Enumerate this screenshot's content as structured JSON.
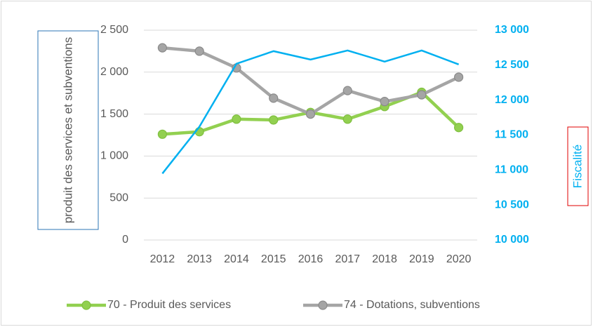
{
  "chart_data": {
    "type": "line",
    "categories": [
      "2012",
      "2013",
      "2014",
      "2015",
      "2016",
      "2017",
      "2018",
      "2019",
      "2020"
    ],
    "series": [
      {
        "name": "70 - Produit des services",
        "color": "#92d050",
        "values": [
          1260,
          1290,
          1440,
          1430,
          1520,
          1440,
          1590,
          1760,
          1340
        ]
      },
      {
        "name": "74 - Dotations, subventions",
        "color": "#a5a5a5",
        "values": [
          2290,
          2250,
          2050,
          1690,
          1500,
          1780,
          1650,
          1730,
          1940
        ]
      },
      {
        "color": "#00b0f0",
        "axis": "y2",
        "values": [
          10950,
          11620,
          12520,
          12700,
          12580,
          12710,
          12550,
          12710,
          12510
        ]
      }
    ],
    "ylabel": "produit des services et subventions",
    "y2label": "Fiscalité",
    "ylim": [
      0,
      2500
    ],
    "yticks": [
      0,
      500,
      {
        "value": 1000,
        "label": "1 000"
      },
      {
        "value": 1500,
        "label": "1 500"
      },
      {
        "value": 2000,
        "label": "2 000"
      },
      {
        "value": 2500,
        "label": "2 500"
      }
    ],
    "y2lim": [
      10000,
      13000
    ],
    "y2ticks": [
      {
        "value": 10000,
        "label": "10 000"
      },
      {
        "value": 10500,
        "label": "10 500"
      },
      {
        "value": 11000,
        "label": "11 000"
      },
      {
        "value": 11500,
        "label": "11 500"
      },
      {
        "value": 12000,
        "label": "12 000"
      },
      {
        "value": 12500,
        "label": "12 500"
      },
      {
        "value": 13000,
        "label": "13 000"
      }
    ],
    "grid": true,
    "legend": "bottom"
  }
}
